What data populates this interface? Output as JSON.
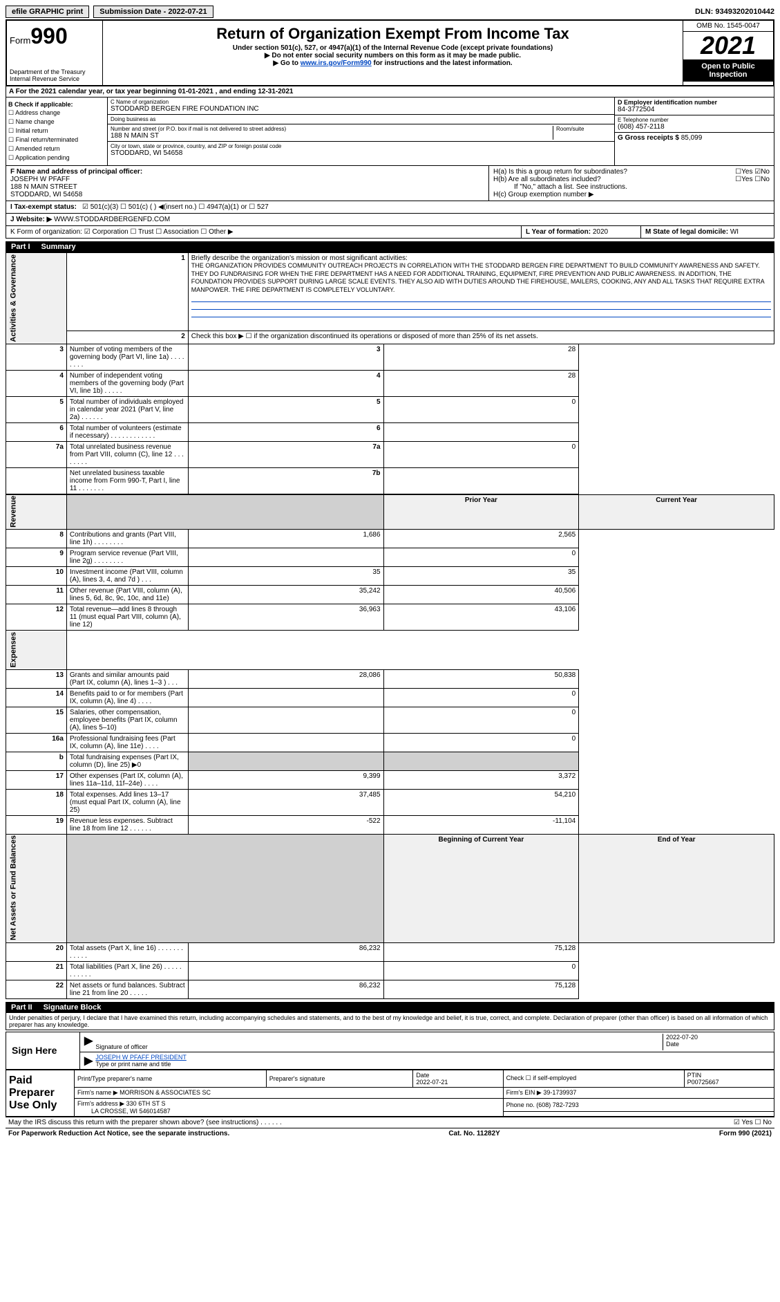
{
  "topbar": {
    "efile": "efile GRAPHIC print",
    "subdate_lbl": "Submission Date - 2022-07-21",
    "dln": "DLN: 93493202010442"
  },
  "header": {
    "form_prefix": "Form",
    "form_num": "990",
    "dept": "Department of the Treasury",
    "irs": "Internal Revenue Service",
    "title": "Return of Organization Exempt From Income Tax",
    "sub1": "Under section 501(c), 527, or 4947(a)(1) of the Internal Revenue Code (except private foundations)",
    "sub2": "▶ Do not enter social security numbers on this form as it may be made public.",
    "sub3": "▶ Go to www.irs.gov/Form990 for instructions and the latest information.",
    "link": "www.irs.gov/Form990",
    "omb": "OMB No. 1545-0047",
    "year": "2021",
    "open": "Open to Public Inspection"
  },
  "line_a": "A For the 2021 calendar year, or tax year beginning 01-01-2021  , and ending 12-31-2021",
  "col_b": {
    "hdr": "B Check if applicable:",
    "items": [
      "Address change",
      "Name change",
      "Initial return",
      "Final return/terminated",
      "Amended return",
      "Application pending"
    ]
  },
  "col_c": {
    "name_lbl": "C Name of organization",
    "name": "STODDARD BERGEN FIRE FOUNDATION INC",
    "dba_lbl": "Doing business as",
    "dba": "",
    "addr_lbl": "Number and street (or P.O. box if mail is not delivered to street address)",
    "room_lbl": "Room/suite",
    "addr": "188 N MAIN ST",
    "city_lbl": "City or town, state or province, country, and ZIP or foreign postal code",
    "city": "STODDARD, WI  54658"
  },
  "col_d": {
    "ein_lbl": "D Employer identification number",
    "ein": "84-3772504",
    "tel_lbl": "E Telephone number",
    "tel": "(608) 457-2118",
    "gross_lbl": "G Gross receipts $",
    "gross": "85,099"
  },
  "col_f": {
    "lbl": "F  Name and address of principal officer:",
    "name": "JOSEPH W PFAFF",
    "addr1": "188 N MAIN STREET",
    "addr2": "STODDARD, WI  54658"
  },
  "col_h": {
    "ha": "H(a)  Is this a group return for subordinates?",
    "hb": "H(b)  Are all subordinates included?",
    "hb_note": "If \"No,\" attach a list. See instructions.",
    "hc": "H(c)  Group exemption number ▶",
    "yes": "Yes",
    "no": "No"
  },
  "row_i": {
    "lbl": "I   Tax-exempt status:",
    "opts": "501(c)(3)      ☐  501(c) (  ) ◀(insert no.)     ☐  4947(a)(1) or   ☐  527"
  },
  "row_j": {
    "lbl": "J   Website: ▶",
    "val": "WWW.STODDARDBERGENFD.COM"
  },
  "row_k": {
    "lbl": "K Form of organization:  ☑ Corporation ☐ Trust ☐ Association ☐ Other ▶",
    "l_lbl": "L Year of formation:",
    "l_val": "2020",
    "m_lbl": "M State of legal domicile:",
    "m_val": "WI"
  },
  "part1": {
    "tag": "Part I",
    "title": "Summary"
  },
  "summary": {
    "l1_lbl": "Briefly describe the organization's mission or most significant activities:",
    "l1": "THE ORGANIZATION PROVIDES COMMUNITY OUTREACH PROJECTS IN CORRELATION WITH THE STODDARD BERGEN FIRE DEPARTMENT TO BUILD COMMUNITY AWARENESS AND SAFETY. THEY DO FUNDRAISING FOR WHEN THE FIRE DEPARTMENT HAS A NEED FOR ADDITIONAL TRAINING, EQUIPMENT, FIRE PREVENTION AND PUBLIC AWARENESS. IN ADDITION, THE FOUNDATION PROVIDES SUPPORT DURING LARGE SCALE EVENTS. THEY ALSO AID WITH DUTIES AROUND THE FIREHOUSE, MAILERS, COOKING, ANY AND ALL TASKS THAT REQUIRE EXTRA MANPOWER. THE FIRE DEPARTMENT IS COMPLETELY VOLUNTARY.",
    "l2": "Check this box ▶ ☐ if the organization discontinued its operations or disposed of more than 25% of its net assets.",
    "rows_gov": [
      {
        "n": "3",
        "t": "Number of voting members of the governing body (Part VI, line 1a)   .    .    .    .    .    .    .    .",
        "b": "3",
        "v": "28"
      },
      {
        "n": "4",
        "t": "Number of independent voting members of the governing body (Part VI, line 1b)   .    .    .    .    .",
        "b": "4",
        "v": "28"
      },
      {
        "n": "5",
        "t": "Total number of individuals employed in calendar year 2021 (Part V, line 2a)   .    .    .    .    .    .",
        "b": "5",
        "v": "0"
      },
      {
        "n": "6",
        "t": "Total number of volunteers (estimate if necessary)   .    .    .    .    .    .    .    .    .    .    .    .",
        "b": "6",
        "v": ""
      },
      {
        "n": "7a",
        "t": "Total unrelated business revenue from Part VIII, column (C), line 12   .    .    .    .    .    .    .    .",
        "b": "7a",
        "v": "0"
      },
      {
        "n": "",
        "t": "Net unrelated business taxable income from Form 990-T, Part I, line 11   .    .    .    .    .    .    .",
        "b": "7b",
        "v": ""
      }
    ],
    "prior_hdr": "Prior Year",
    "curr_hdr": "Current Year",
    "rows_rev": [
      {
        "n": "8",
        "t": "Contributions and grants (Part VIII, line 1h)   .    .    .    .    .    .    .    .",
        "p": "1,686",
        "c": "2,565"
      },
      {
        "n": "9",
        "t": "Program service revenue (Part VIII, line 2g)   .    .    .    .    .    .    .    .",
        "p": "",
        "c": "0"
      },
      {
        "n": "10",
        "t": "Investment income (Part VIII, column (A), lines 3, 4, and 7d )   .    .    .",
        "p": "35",
        "c": "35"
      },
      {
        "n": "11",
        "t": "Other revenue (Part VIII, column (A), lines 5, 6d, 8c, 9c, 10c, and 11e)",
        "p": "35,242",
        "c": "40,506"
      },
      {
        "n": "12",
        "t": "Total revenue—add lines 8 through 11 (must equal Part VIII, column (A), line 12)",
        "p": "36,963",
        "c": "43,106"
      }
    ],
    "rows_exp": [
      {
        "n": "13",
        "t": "Grants and similar amounts paid (Part IX, column (A), lines 1–3 )   .    .    .",
        "p": "28,086",
        "c": "50,838"
      },
      {
        "n": "14",
        "t": "Benefits paid to or for members (Part IX, column (A), line 4)   .    .    .    .",
        "p": "",
        "c": "0"
      },
      {
        "n": "15",
        "t": "Salaries, other compensation, employee benefits (Part IX, column (A), lines 5–10)",
        "p": "",
        "c": "0"
      },
      {
        "n": "16a",
        "t": "Professional fundraising fees (Part IX, column (A), line 11e)   .    .    .    .",
        "p": "",
        "c": "0"
      },
      {
        "n": "b",
        "t": "Total fundraising expenses (Part IX, column (D), line 25) ▶0",
        "p": "shade",
        "c": "shade"
      },
      {
        "n": "17",
        "t": "Other expenses (Part IX, column (A), lines 11a–11d, 11f–24e)   .    .    .    .",
        "p": "9,399",
        "c": "3,372"
      },
      {
        "n": "18",
        "t": "Total expenses. Add lines 13–17 (must equal Part IX, column (A), line 25)",
        "p": "37,485",
        "c": "54,210"
      },
      {
        "n": "19",
        "t": "Revenue less expenses. Subtract line 18 from line 12   .    .    .    .    .    .",
        "p": "-522",
        "c": "-11,104"
      }
    ],
    "begin_hdr": "Beginning of Current Year",
    "end_hdr": "End of Year",
    "rows_net": [
      {
        "n": "20",
        "t": "Total assets (Part X, line 16)   .    .    .    .    .    .    .    .    .    .    .    .",
        "p": "86,232",
        "c": "75,128"
      },
      {
        "n": "21",
        "t": "Total liabilities (Part X, line 26)   .    .    .    .    .    .    .    .    .    .    .",
        "p": "",
        "c": "0"
      },
      {
        "n": "22",
        "t": "Net assets or fund balances. Subtract line 21 from line 20   .    .    .    .    .",
        "p": "86,232",
        "c": "75,128"
      }
    ],
    "tab_gov": "Activities & Governance",
    "tab_rev": "Revenue",
    "tab_exp": "Expenses",
    "tab_net": "Net Assets or Fund Balances"
  },
  "part2": {
    "tag": "Part II",
    "title": "Signature Block",
    "penalty": "Under penalties of perjury, I declare that I have examined this return, including accompanying schedules and statements, and to the best of my knowledge and belief, it is true, correct, and complete. Declaration of preparer (other than officer) is based on all information of which preparer has any knowledge."
  },
  "sign": {
    "here": "Sign Here",
    "sig_lbl": "Signature of officer",
    "date_lbl": "Date",
    "date": "2022-07-20",
    "name": "JOSEPH W PFAFF  PRESIDENT",
    "name_lbl": "Type or print name and title"
  },
  "prep": {
    "title": "Paid Preparer Use Only",
    "h1": "Print/Type preparer's name",
    "h2": "Preparer's signature",
    "h3": "Date",
    "h3v": "2022-07-21",
    "h4": "Check ☐ if self-employed",
    "h5": "PTIN",
    "h5v": "P00725667",
    "firm_lbl": "Firm's name     ▶",
    "firm": "MORRISON & ASSOCIATES SC",
    "ein_lbl": "Firm's EIN ▶",
    "ein": "39-1739937",
    "addr_lbl": "Firm's address ▶",
    "addr1": "330 6TH ST S",
    "addr2": "LA CROSSE, WI  546014587",
    "phone_lbl": "Phone no.",
    "phone": "(608) 782-7293"
  },
  "footer": {
    "discuss": "May the IRS discuss this return with the preparer shown above? (see instructions)   .    .    .    .    .    .",
    "yes": "☑ Yes  ☐ No",
    "pra": "For Paperwork Reduction Act Notice, see the separate instructions.",
    "cat": "Cat. No. 11282Y",
    "form": "Form 990 (2021)"
  }
}
